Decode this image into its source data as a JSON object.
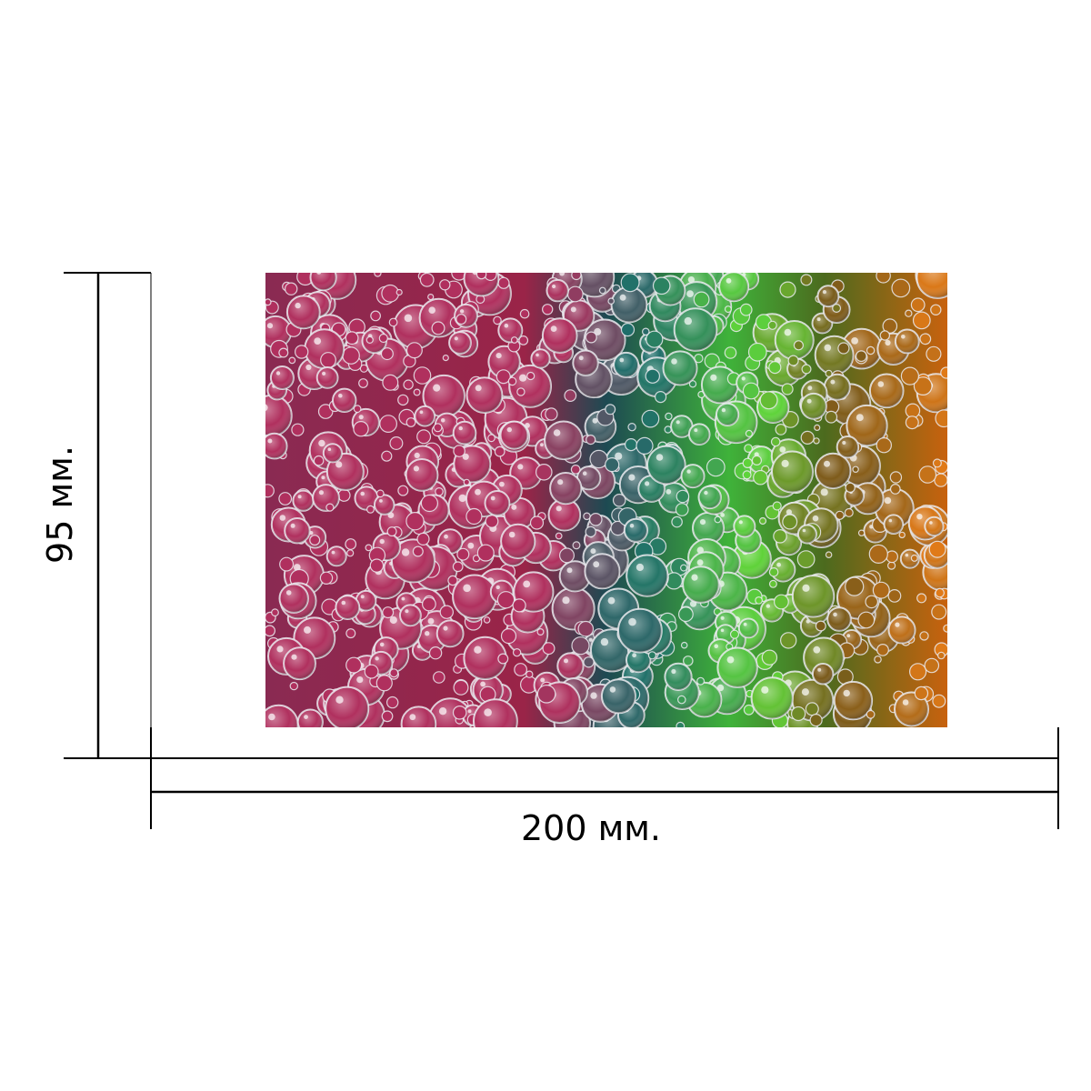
{
  "dimensions": {
    "width_label": "200 мм.",
    "height_label": "95 мм."
  },
  "photo": {
    "subject": "colorful-soap-bubbles-photo",
    "palette": {
      "magenta": "#b0305e",
      "teal": "#1f6e6a",
      "green": "#5fd43a",
      "orange": "#e07a18",
      "highlight": "#ffffff"
    }
  },
  "colors": {
    "guide_line": "#000000",
    "background": "#ffffff"
  }
}
